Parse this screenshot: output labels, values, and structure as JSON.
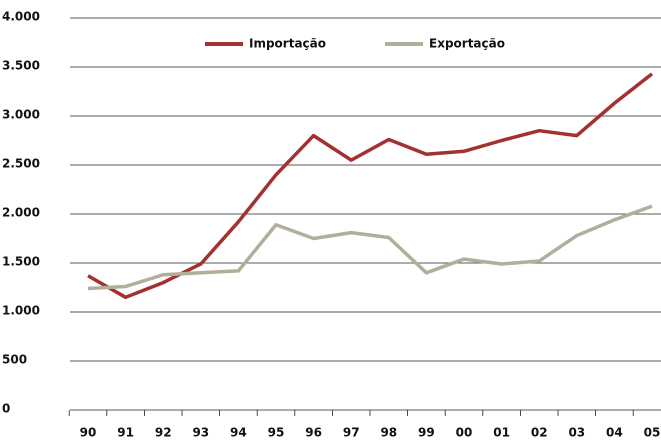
{
  "chart_data": {
    "type": "line",
    "categories": [
      "90",
      "91",
      "92",
      "93",
      "94",
      "95",
      "96",
      "97",
      "98",
      "99",
      "00",
      "01",
      "02",
      "03",
      "04",
      "05"
    ],
    "series": [
      {
        "name": "Importação",
        "color": "#a3312f",
        "values": [
          1370,
          1150,
          1300,
          1490,
          1920,
          2400,
          2800,
          2550,
          2760,
          2610,
          2640,
          2750,
          2850,
          2800,
          3130,
          3430
        ]
      },
      {
        "name": "Exportação",
        "color": "#b3ad9b",
        "values": [
          1240,
          1260,
          1380,
          1400,
          1420,
          1890,
          1750,
          1810,
          1760,
          1400,
          1540,
          1490,
          1520,
          1780,
          1940,
          2080
        ]
      }
    ],
    "ylim": [
      0,
      4000
    ],
    "yticks": [
      0,
      500,
      {
        "value": 1000,
        "label": "1.000"
      },
      {
        "value": 1500,
        "label": "1.500"
      },
      {
        "value": 2000,
        "label": "2.000"
      },
      {
        "value": 2500,
        "label": "2.500"
      },
      {
        "value": 3000,
        "label": "3.000"
      },
      {
        "value": 3500,
        "label": "3.500"
      },
      {
        "value": 4000,
        "label": "4.000"
      }
    ],
    "grid": true
  }
}
